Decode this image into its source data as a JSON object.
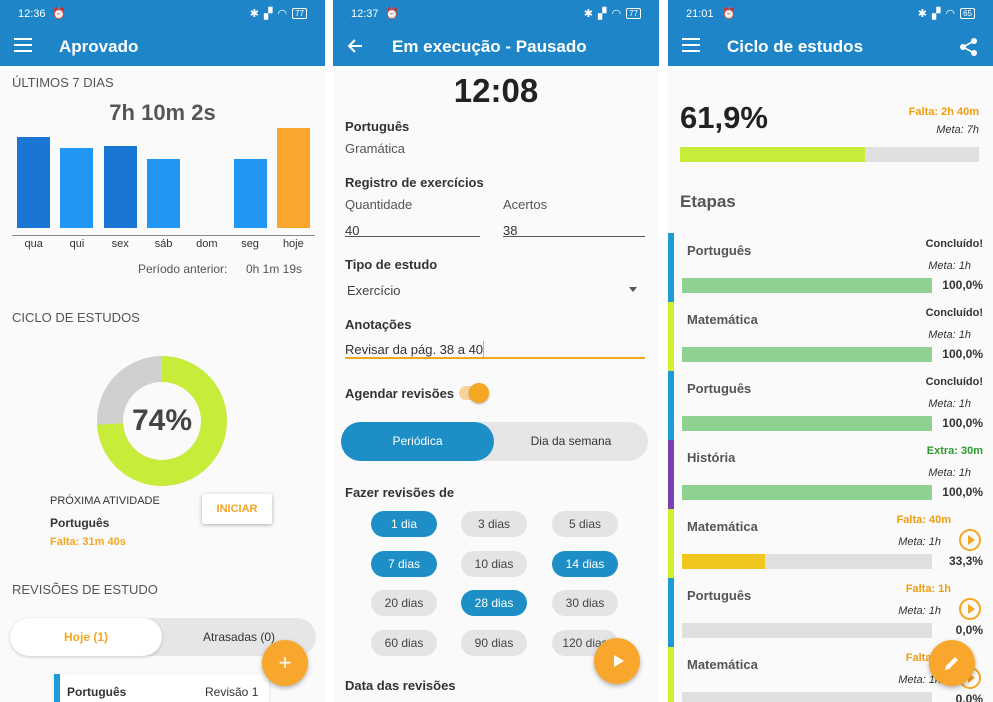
{
  "colors": {
    "primary": "#1e86c8",
    "accent_orange": "#f8a72c",
    "progress_green": "#8fd190",
    "progress_lime": "#c8ec3a",
    "progress_yellow": "#f2c71d",
    "bar_dark_blue": "#1976d2",
    "bar_light_blue": "#2196f3",
    "stripe_blue": "#1e9bd7",
    "stripe_lime": "#d4ee2e",
    "stripe_purple": "#7b3fb0",
    "warning_orange": "#f09d0f",
    "extra_green": "#2e9a2e"
  },
  "screen1": {
    "status": {
      "time": "12:36",
      "battery": "77"
    },
    "appbar": {
      "title": "Aprovado",
      "menu_icon": "menu-icon"
    },
    "week": {
      "heading": "ÚLTIMOS 7 DIAS",
      "total": "7h 10m 2s",
      "previous_label": "Período anterior:",
      "previous_value": "0h 1m 19s"
    },
    "week_chart": {
      "type": "bar",
      "categories": [
        "qua",
        "qui",
        "sex",
        "sáb",
        "dom",
        "seg",
        "hoje"
      ],
      "values": [
        91,
        80,
        82,
        69,
        0,
        69,
        100
      ],
      "colors": [
        "#1976d2",
        "#2196f3",
        "#1976d2",
        "#2196f3",
        "#2196f3",
        "#2196f3",
        "#f8a72c"
      ],
      "ylim": [
        0,
        100
      ]
    },
    "cycle": {
      "heading": "CICLO DE ESTUDOS",
      "percent_label": "74%",
      "percent": 74,
      "next_label": "PRÓXIMA ATIVIDADE",
      "next_subject": "Português",
      "next_missing": "Falta: 31m 40s",
      "start_button": "INICIAR"
    },
    "reviews": {
      "heading": "REVISÕES DE ESTUDO",
      "tab_today": "Hoje (1)",
      "tab_late": "Atrasadas (0)",
      "item_subject": "Português",
      "item_review": "Revisão 1"
    },
    "fab_icon": "plus-icon"
  },
  "screen2": {
    "status": {
      "time": "12:37",
      "battery": "77"
    },
    "appbar": {
      "title": "Em execução - Pausado",
      "back_icon": "arrow-left-icon"
    },
    "timer": "12:08",
    "subject": "Português",
    "topic": "Gramática",
    "exercises": {
      "heading": "Registro de exercícios",
      "quantity_label": "Quantidade",
      "quantity_value": "40",
      "hits_label": "Acertos",
      "hits_value": "38"
    },
    "study_type": {
      "heading": "Tipo de estudo",
      "value": "Exercício"
    },
    "notes": {
      "heading": "Anotações",
      "value": "Revisar da pág. 38 a 40"
    },
    "schedule_reviews": {
      "label": "Agendar revisões",
      "enabled": true
    },
    "mode": {
      "periodic": "Periódica",
      "weekday": "Dia da semana"
    },
    "review_days": {
      "heading": "Fazer revisões de",
      "options": [
        {
          "label": "1 dia",
          "selected": true
        },
        {
          "label": "3 dias",
          "selected": false
        },
        {
          "label": "5 dias",
          "selected": false
        },
        {
          "label": "7 dias",
          "selected": true
        },
        {
          "label": "10 dias",
          "selected": false
        },
        {
          "label": "14 dias",
          "selected": true
        },
        {
          "label": "20 dias",
          "selected": false
        },
        {
          "label": "28 dias",
          "selected": true
        },
        {
          "label": "30 dias",
          "selected": false
        },
        {
          "label": "60 dias",
          "selected": false
        },
        {
          "label": "90 dias",
          "selected": false
        },
        {
          "label": "120 dias",
          "selected": false
        }
      ]
    },
    "review_dates_heading": "Data das revisões",
    "fab_icon": "play-icon"
  },
  "screen3": {
    "status": {
      "time": "21:01",
      "battery": "65"
    },
    "appbar": {
      "title": "Ciclo de estudos",
      "menu_icon": "menu-icon",
      "share_icon": "share-icon"
    },
    "overall": {
      "percent_label": "61,9%",
      "percent": 61.9,
      "missing": "Falta: 2h 40m",
      "goal": "Meta: 7h"
    },
    "stages_heading": "Etapas",
    "stages": [
      {
        "name": "Português",
        "status": "Concluído!",
        "goal": "Meta: 1h",
        "percent_label": "100,0%",
        "progress": 100,
        "stripe": "#1e9bd7",
        "status_color": "#333333",
        "fill": "#8fd190",
        "play": false
      },
      {
        "name": "Matemática",
        "status": "Concluído!",
        "goal": "Meta: 1h",
        "percent_label": "100,0%",
        "progress": 100,
        "stripe": "#d4ee2e",
        "status_color": "#333333",
        "fill": "#8fd190",
        "play": false
      },
      {
        "name": "Português",
        "status": "Concluído!",
        "goal": "Meta: 1h",
        "percent_label": "100,0%",
        "progress": 100,
        "stripe": "#1e9bd7",
        "status_color": "#333333",
        "fill": "#8fd190",
        "play": false
      },
      {
        "name": "História",
        "status": "Extra: 30m",
        "goal": "Meta: 1h",
        "percent_label": "100,0%",
        "progress": 100,
        "stripe": "#7b3fb0",
        "status_color": "#2e9a2e",
        "fill": "#8fd190",
        "play": false
      },
      {
        "name": "Matemática",
        "status": "Falta: 40m",
        "goal": "Meta: 1h",
        "percent_label": "33,3%",
        "progress": 33.3,
        "stripe": "#d4ee2e",
        "status_color": "#f09d0f",
        "fill": "#f2c71d",
        "play": true
      },
      {
        "name": "Português",
        "status": "Falta: 1h",
        "goal": "Meta: 1h",
        "percent_label": "0,0%",
        "progress": 0,
        "stripe": "#1e9bd7",
        "status_color": "#f09d0f",
        "fill": "#f2c71d",
        "play": true
      },
      {
        "name": "Matemática",
        "status": "Falta: 1h",
        "goal": "Meta: 1h",
        "percent_label": "0,0%",
        "progress": 0,
        "stripe": "#d4ee2e",
        "status_color": "#f09d0f",
        "fill": "#f2c71d",
        "play": true
      }
    ],
    "fab_icon": "pencil-icon"
  }
}
